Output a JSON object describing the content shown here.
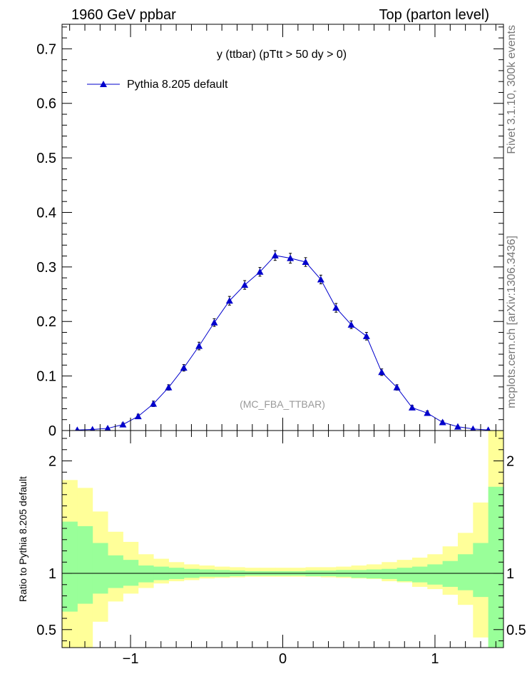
{
  "header": {
    "left_title": "1960 GeV ppbar",
    "right_title": "Top (parton level)"
  },
  "side_labels": {
    "rivet": "Rivet 3.1.10,  300k events",
    "mcplots": "mcplots.cern.ch [arXiv:1306.3436]"
  },
  "analysis_tag": "(MC_FBA_TTBAR)",
  "colors": {
    "series": "#0000cc",
    "band_green": "#99ff99",
    "band_yellow": "#ffff99",
    "analysis_tag": "#999999",
    "side_text": "#777777"
  },
  "chart_data": [
    {
      "type": "line",
      "title": "y (ttbar) (pTtt > 50 dy > 0)",
      "xlabel": "",
      "ylabel": "",
      "xlim": [
        -1.45,
        1.45
      ],
      "ylim": [
        0,
        0.745
      ],
      "yticks": [
        0,
        0.1,
        0.2,
        0.3,
        0.4,
        0.5,
        0.6,
        0.7
      ],
      "ytick_labels": [
        "0",
        "0.1",
        "0.2",
        "0.3",
        "0.4",
        "0.5",
        "0.6",
        "0.7"
      ],
      "legend": {
        "entry": "Pythia 8.205 default",
        "position": "top-left"
      },
      "series": [
        {
          "name": "Pythia 8.205 default",
          "marker": "triangle",
          "x": [
            -1.35,
            -1.25,
            -1.15,
            -1.05,
            -0.95,
            -0.85,
            -0.75,
            -0.65,
            -0.55,
            -0.45,
            -0.35,
            -0.25,
            -0.15,
            -0.05,
            0.05,
            0.15,
            0.25,
            0.35,
            0.45,
            0.55,
            0.65,
            0.75,
            0.85,
            0.95,
            1.05,
            1.15,
            1.25,
            1.35
          ],
          "y": [
            0.001,
            0.002,
            0.004,
            0.011,
            0.026,
            0.049,
            0.079,
            0.115,
            0.155,
            0.198,
            0.238,
            0.267,
            0.291,
            0.321,
            0.316,
            0.309,
            0.277,
            0.225,
            0.194,
            0.173,
            0.107,
            0.079,
            0.042,
            0.032,
            0.015,
            0.007,
            0.003,
            0.001
          ],
          "yerr": [
            0.001,
            0.001,
            0.002,
            0.003,
            0.004,
            0.005,
            0.005,
            0.006,
            0.007,
            0.007,
            0.008,
            0.008,
            0.008,
            0.009,
            0.009,
            0.008,
            0.008,
            0.008,
            0.007,
            0.007,
            0.006,
            0.005,
            0.004,
            0.004,
            0.003,
            0.002,
            0.001,
            0.001
          ]
        }
      ]
    },
    {
      "type": "area",
      "title": "",
      "xlabel": "",
      "ylabel": "Ratio to Pythia 8.205 default",
      "xlim": [
        -1.45,
        1.45
      ],
      "ylim": [
        0.34,
        2.27
      ],
      "yticks": [
        0.5,
        1,
        2
      ],
      "ytick_labels": [
        "0.5",
        "1",
        "2"
      ],
      "xticks": [
        -1,
        0,
        1
      ],
      "xtick_labels": [
        "−1",
        "0",
        "1"
      ],
      "reference_line": 1,
      "bins": [
        -1.45,
        -1.35,
        -1.25,
        -1.15,
        -1.05,
        -0.95,
        -0.85,
        -0.75,
        -0.65,
        -0.55,
        -0.45,
        -0.35,
        -0.25,
        -0.15,
        -0.05,
        0.05,
        0.15,
        0.25,
        0.35,
        0.45,
        0.55,
        0.65,
        0.75,
        0.85,
        0.95,
        1.05,
        1.15,
        1.25,
        1.35,
        1.45
      ],
      "series": [
        {
          "name": "stat uncertainty (green)",
          "lower": [
            0.66,
            0.73,
            0.82,
            0.87,
            0.89,
            0.92,
            0.94,
            0.95,
            0.96,
            0.97,
            0.97,
            0.975,
            0.98,
            0.98,
            0.98,
            0.98,
            0.975,
            0.975,
            0.97,
            0.96,
            0.955,
            0.95,
            0.93,
            0.92,
            0.9,
            0.88,
            0.85,
            0.79,
            0.34
          ],
          "upper": [
            1.46,
            1.42,
            1.27,
            1.16,
            1.12,
            1.07,
            1.06,
            1.05,
            1.04,
            1.035,
            1.03,
            1.025,
            1.02,
            1.02,
            1.02,
            1.02,
            1.025,
            1.025,
            1.03,
            1.03,
            1.035,
            1.04,
            1.05,
            1.06,
            1.08,
            1.11,
            1.17,
            1.27,
            1.77
          ]
        },
        {
          "name": "total uncertainty (yellow)",
          "lower": [
            0.34,
            0.34,
            0.57,
            0.75,
            0.82,
            0.87,
            0.91,
            0.93,
            0.94,
            0.955,
            0.96,
            0.965,
            0.97,
            0.97,
            0.97,
            0.97,
            0.97,
            0.965,
            0.96,
            0.955,
            0.95,
            0.93,
            0.92,
            0.88,
            0.86,
            0.81,
            0.72,
            0.43,
            0.34
          ],
          "upper": [
            1.83,
            1.76,
            1.55,
            1.37,
            1.28,
            1.17,
            1.13,
            1.1,
            1.08,
            1.07,
            1.06,
            1.055,
            1.05,
            1.05,
            1.05,
            1.05,
            1.055,
            1.055,
            1.06,
            1.07,
            1.08,
            1.1,
            1.12,
            1.14,
            1.17,
            1.24,
            1.36,
            1.63,
            2.27
          ]
        }
      ]
    }
  ]
}
